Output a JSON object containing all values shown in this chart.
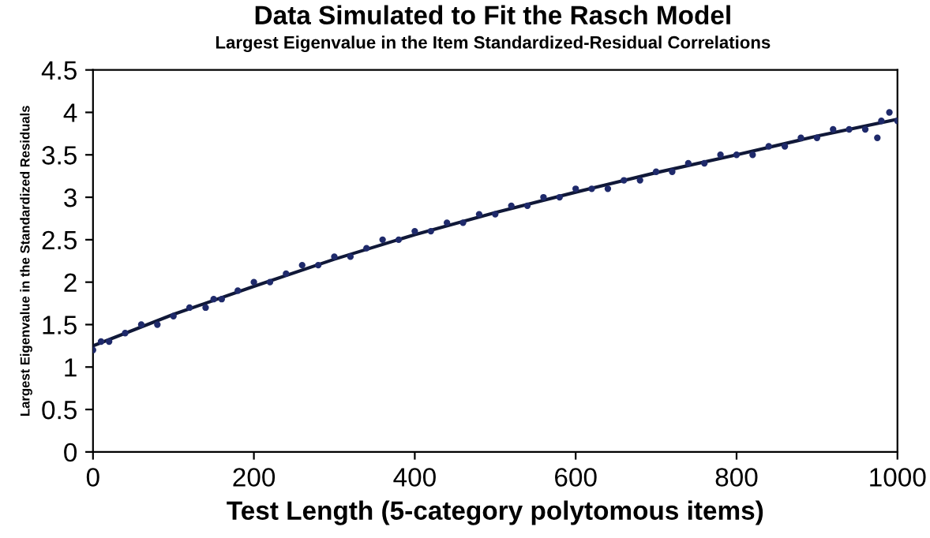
{
  "chart_data": {
    "type": "scatter",
    "title": "Data Simulated to Fit the Rasch Model",
    "subtitle": "Largest Eigenvalue in the Item Standardized-Residual Correlations",
    "xlabel": "Test Length (5-category polytomous items)",
    "ylabel": "Largest Eigenvalue in the Standardized Residuals",
    "xlim": [
      0,
      1000
    ],
    "xticks": [
      0,
      200,
      400,
      600,
      800,
      1000
    ],
    "ylim": [
      0,
      4.5
    ],
    "yticks": [
      0,
      0.5,
      1,
      1.5,
      2,
      2.5,
      3,
      3.5,
      4,
      4.5
    ],
    "grid": false,
    "legend": false,
    "series": [
      {
        "marker": "circle",
        "color": "#1f2a6b",
        "x": [
          0,
          10,
          20,
          40,
          60,
          80,
          100,
          120,
          140,
          150,
          160,
          180,
          200,
          220,
          240,
          260,
          280,
          300,
          320,
          340,
          360,
          380,
          400,
          420,
          440,
          460,
          480,
          500,
          520,
          540,
          560,
          580,
          600,
          620,
          640,
          660,
          680,
          700,
          720,
          740,
          760,
          780,
          800,
          820,
          840,
          860,
          880,
          900,
          920,
          940,
          960,
          975,
          980,
          990,
          1000
        ],
        "values": [
          1.2,
          1.3,
          1.3,
          1.4,
          1.5,
          1.5,
          1.6,
          1.7,
          1.7,
          1.8,
          1.8,
          1.9,
          2.0,
          2.0,
          2.1,
          2.2,
          2.2,
          2.3,
          2.3,
          2.4,
          2.5,
          2.5,
          2.6,
          2.6,
          2.7,
          2.7,
          2.8,
          2.8,
          2.9,
          2.9,
          3.0,
          3.0,
          3.1,
          3.1,
          3.1,
          3.2,
          3.2,
          3.3,
          3.3,
          3.4,
          3.4,
          3.5,
          3.5,
          3.5,
          3.6,
          3.6,
          3.7,
          3.7,
          3.8,
          3.8,
          3.8,
          3.7,
          3.9,
          4.0,
          3.9
        ]
      },
      {
        "type": "line",
        "color": "#101838",
        "x": [
          0,
          100,
          200,
          300,
          400,
          500,
          600,
          700,
          800,
          900,
          1000
        ],
        "values": [
          1.25,
          1.62,
          1.95,
          2.27,
          2.56,
          2.82,
          3.06,
          3.29,
          3.5,
          3.72,
          3.92
        ]
      }
    ]
  }
}
